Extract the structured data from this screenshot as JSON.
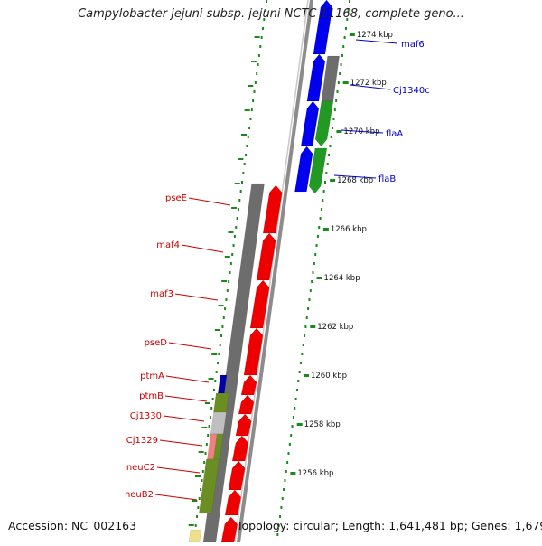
{
  "title": "Campylobacter jejuni subsp. jejuni NCTC 11168, complete geno...",
  "footer": {
    "accession": "Accession: NC_002163",
    "topology": "Topology: circular; Length: 1,641,481 bp; Genes: 1,679"
  },
  "ticks": [
    "1274 kbp",
    "1272 kbp",
    "1270 kbp",
    "1268 kbp",
    "1266 kbp",
    "1264 kbp",
    "1262 kbp",
    "1260 kbp",
    "1258 kbp",
    "1256 kbp"
  ],
  "gene_labels": {
    "forward": [
      "maf6",
      "Cj1340c",
      "flaA",
      "flaB"
    ],
    "reverse": [
      "pseE",
      "maf4",
      "maf3",
      "pseD",
      "ptmA",
      "ptmB",
      "Cj1330",
      "Cj1329",
      "neuC2",
      "neuB2"
    ]
  },
  "colors": {
    "forward_label": "#0000cc",
    "reverse_label": "#cc0000",
    "tick_dots": "#1a8a1a",
    "backbone": "#8c8c8c"
  }
}
